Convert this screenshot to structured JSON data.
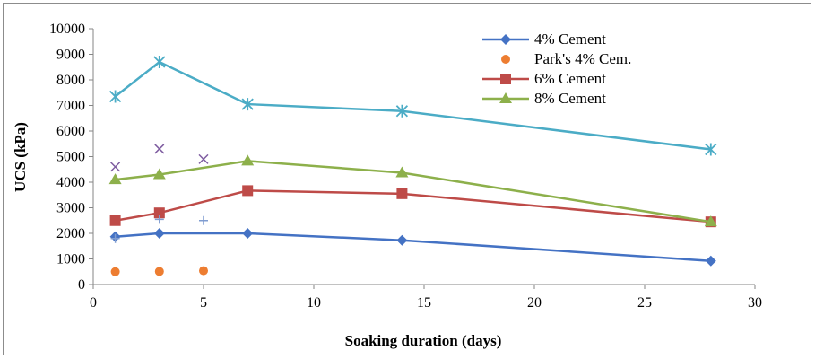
{
  "chart_data": {
    "type": "scatter",
    "title": "",
    "xlabel": "Soaking duration (days)",
    "ylabel": "UCS (kPa)",
    "xlim": [
      0,
      30
    ],
    "ylim": [
      0,
      10000
    ],
    "xticks": [
      0,
      5,
      10,
      15,
      20,
      25,
      30
    ],
    "yticks": [
      0,
      1000,
      2000,
      3000,
      4000,
      5000,
      6000,
      7000,
      8000,
      9000,
      10000
    ],
    "grid": false,
    "legend_position": "top-right",
    "series": [
      {
        "name": "4% Cement",
        "color": "#4472C4",
        "marker": "diamond",
        "line": true,
        "points": [
          [
            1,
            1870
          ],
          [
            3,
            2000
          ],
          [
            7,
            2000
          ],
          [
            14,
            1730
          ],
          [
            28,
            920
          ]
        ]
      },
      {
        "name": "Park's 4% Cem.",
        "color": "#ED7D31",
        "marker": "circle",
        "line": false,
        "points": [
          [
            1,
            500
          ],
          [
            3,
            510
          ],
          [
            5,
            540
          ]
        ]
      },
      {
        "name": "6% Cement",
        "color": "#BE4B48",
        "marker": "square",
        "line": true,
        "points": [
          [
            1,
            2500
          ],
          [
            3,
            2800
          ],
          [
            7,
            3670
          ],
          [
            14,
            3550
          ],
          [
            28,
            2450
          ]
        ]
      },
      {
        "name": "8% Cement",
        "color": "#8DB04B",
        "marker": "triangle",
        "line": true,
        "points": [
          [
            1,
            4100
          ],
          [
            3,
            4300
          ],
          [
            7,
            4830
          ],
          [
            14,
            4370
          ],
          [
            28,
            2450
          ]
        ]
      },
      {
        "name": "",
        "color": "#7F9CD0",
        "marker": "plus",
        "line": false,
        "points": [
          [
            1,
            1800
          ],
          [
            3,
            2550
          ],
          [
            5,
            2500
          ]
        ]
      },
      {
        "name": "",
        "color": "#7E5CA0",
        "marker": "x",
        "line": false,
        "points": [
          [
            1,
            4600
          ],
          [
            3,
            5300
          ],
          [
            5,
            4900
          ]
        ]
      },
      {
        "name": "",
        "color": "#4BACC6",
        "marker": "star",
        "line": true,
        "points": [
          [
            1,
            7350
          ],
          [
            3,
            8700
          ],
          [
            7,
            7050
          ],
          [
            14,
            6780
          ],
          [
            28,
            5280
          ]
        ]
      }
    ]
  }
}
